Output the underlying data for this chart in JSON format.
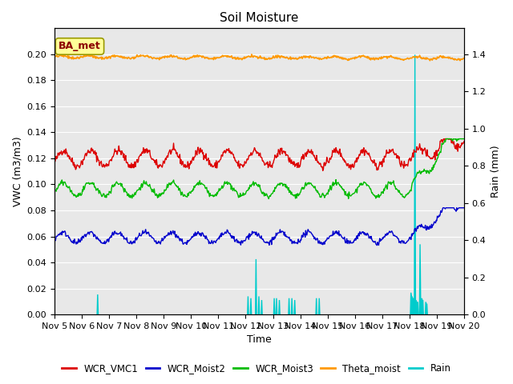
{
  "title": "Soil Moisture",
  "xlabel": "Time",
  "ylabel_left": "VWC (m3/m3)",
  "ylabel_right": "Rain (mm)",
  "ylim_left": [
    0.0,
    0.22
  ],
  "ylim_right": [
    0.0,
    1.54
  ],
  "background_color": "#e8e8e8",
  "annotation_text": "BA_met",
  "annotation_color": "#8b0000",
  "annotation_bg": "#ffff99",
  "annotation_border": "#999900",
  "x_tick_labels": [
    "Nov 5",
    "Nov 6",
    "Nov 7",
    "Nov 8",
    "Nov 9",
    "Nov 10",
    "Nov 11",
    "Nov 12",
    "Nov 13",
    "Nov 14",
    "Nov 15",
    "Nov 16",
    "Nov 17",
    "Nov 18",
    "Nov 19",
    "Nov 20"
  ],
  "colors": {
    "WCR_VMC1": "#dd0000",
    "WCR_Moist2": "#0000cc",
    "WCR_Moist3": "#00bb00",
    "Theta_moist": "#ff9900",
    "Rain": "#00cccc"
  },
  "rain_spikes_day": [
    1.55,
    7.05,
    7.15,
    7.35,
    7.45,
    7.55,
    8.0,
    8.1,
    8.2,
    8.55,
    8.65,
    8.75,
    9.55,
    9.65,
    13.0,
    13.05,
    13.1,
    13.15,
    13.2,
    13.25,
    13.35,
    13.4,
    13.45,
    13.55,
    13.6
  ],
  "rain_heights_mm": [
    0.11,
    0.1,
    0.09,
    0.3,
    0.1,
    0.08,
    0.09,
    0.09,
    0.08,
    0.09,
    0.09,
    0.08,
    0.09,
    0.09,
    0.12,
    0.1,
    0.09,
    1.4,
    0.08,
    0.07,
    0.38,
    0.09,
    0.08,
    0.07,
    0.06
  ]
}
